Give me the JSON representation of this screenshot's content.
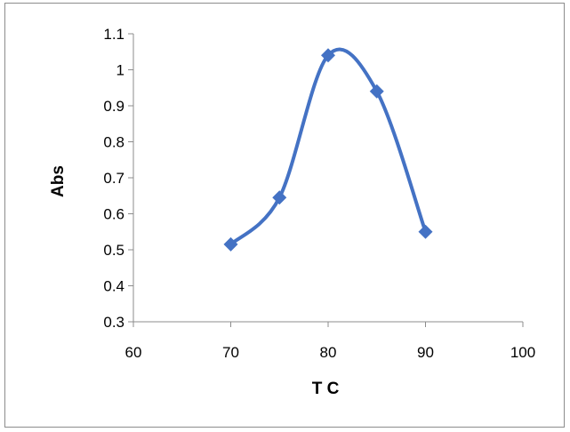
{
  "chart_data": {
    "type": "line",
    "title": "",
    "xlabel": "T C",
    "ylabel": "Abs",
    "xlim": [
      60,
      100
    ],
    "ylim": [
      0.3,
      1.1
    ],
    "x_ticks": [
      "60",
      "70",
      "80",
      "90",
      "100"
    ],
    "y_ticks": [
      "0.3",
      "0.4",
      "0.5",
      "0.6",
      "0.7",
      "0.8",
      "0.9",
      "1",
      "1.1"
    ],
    "grid": false,
    "legend": "none",
    "smooth": true,
    "marker": "diamond",
    "series": [
      {
        "color": "#4472C4",
        "x": [
          70,
          75,
          80,
          85,
          90
        ],
        "y": [
          0.515,
          0.645,
          1.04,
          0.94,
          0.55
        ]
      }
    ]
  }
}
